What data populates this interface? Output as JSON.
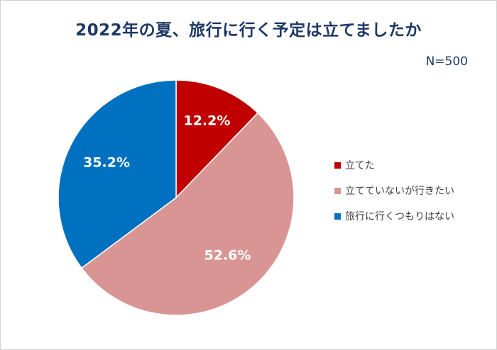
{
  "chart_data": {
    "type": "pie",
    "title": "2022年の夏、旅行に行く予定は立てましたか",
    "note": "N=500",
    "legend_position": "right",
    "slices": [
      {
        "label": "立てた",
        "value": 12.2,
        "value_label": "12.2%",
        "color": "#c00000"
      },
      {
        "label": "立てていないが行きたい",
        "value": 52.6,
        "value_label": "52.6%",
        "color": "#d99594"
      },
      {
        "label": "旅行に行くつもりはない",
        "value": 35.2,
        "value_label": "35.2%",
        "color": "#0070c0"
      }
    ]
  }
}
